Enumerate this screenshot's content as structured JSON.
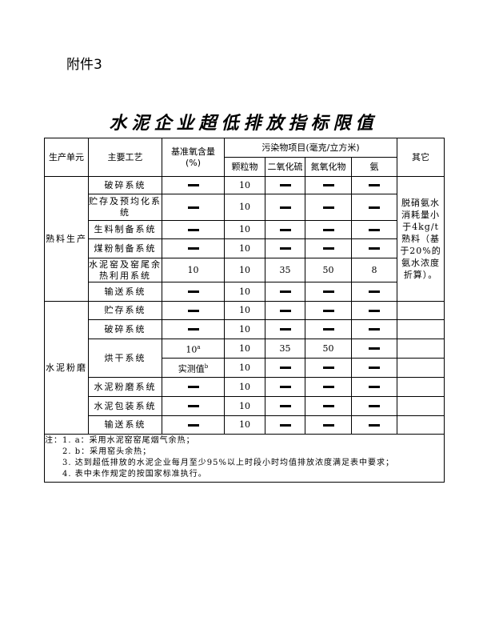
{
  "attachment_label": "附件3",
  "title": "水泥企业超低排放指标限值",
  "headers": {
    "unit": "生产单元",
    "process": "主要工艺",
    "oxygen": "基准氧含量",
    "oxygen_unit": "(%)",
    "pollutants": "污染物项目(毫克/立方米)",
    "particulate": "颗粒物",
    "so2": "二氧化硫",
    "nox": "氮氧化物",
    "ammonia": "氨",
    "other": "其它"
  },
  "dash": "—",
  "groups": [
    {
      "unit": "熟料生产",
      "other": "脱硝氨水消耗量小于4kg/t熟料（基于20%的氨水浓度折算）。",
      "rows": [
        {
          "process": "破碎系统",
          "oxygen": "—",
          "pm": "10",
          "so2": "—",
          "nox": "—",
          "nh3": "—"
        },
        {
          "process": "贮存及预均化系统",
          "oxygen": "—",
          "pm": "10",
          "so2": "—",
          "nox": "—",
          "nh3": "—"
        },
        {
          "process": "生料制备系统",
          "oxygen": "—",
          "pm": "10",
          "so2": "—",
          "nox": "—",
          "nh3": "—"
        },
        {
          "process": "煤粉制备系统",
          "oxygen": "—",
          "pm": "10",
          "so2": "—",
          "nox": "—",
          "nh3": "—"
        },
        {
          "process": "水泥窑及窑尾余热利用系统",
          "oxygen": "10",
          "pm": "10",
          "so2": "35",
          "nox": "50",
          "nh3": "8"
        },
        {
          "process": "输送系统",
          "oxygen": "—",
          "pm": "10",
          "so2": "—",
          "nox": "—",
          "nh3": "—"
        }
      ]
    },
    {
      "unit": "水泥粉磨",
      "rows": [
        {
          "process": "贮存系统",
          "oxygen": "—",
          "pm": "10",
          "so2": "—",
          "nox": "—",
          "nh3": "—"
        },
        {
          "process": "破碎系统",
          "oxygen": "—",
          "pm": "10",
          "so2": "—",
          "nox": "—",
          "nh3": "—"
        },
        {
          "process": "烘干系统",
          "oxygen": "10",
          "oxygen_sup": "a",
          "pm": "10",
          "so2": "35",
          "nox": "50",
          "nh3": "—"
        },
        {
          "oxygen": "实测值",
          "oxygen_sup": "b",
          "pm": "10",
          "so2": "—",
          "nox": "—",
          "nh3": "—"
        },
        {
          "process": "水泥粉磨系统",
          "oxygen": "—",
          "pm": "10",
          "so2": "—",
          "nox": "—",
          "nh3": "—"
        },
        {
          "process": "水泥包装系统",
          "oxygen": "—",
          "pm": "10",
          "so2": "—",
          "nox": "—",
          "nh3": "—"
        },
        {
          "process": "输送系统",
          "oxygen": "—",
          "pm": "10",
          "so2": "—",
          "nox": "—",
          "nh3": "—"
        }
      ]
    }
  ],
  "notes": [
    "注：1. a：采用水泥窑窑尾烟气余热；",
    "2. b：采用窑头余热；",
    "3. 达到超低排放的水泥企业每月至少95%以上时段小时均值排放浓度满足表中要求；",
    "4. 表中未作规定的按国家标准执行。"
  ]
}
